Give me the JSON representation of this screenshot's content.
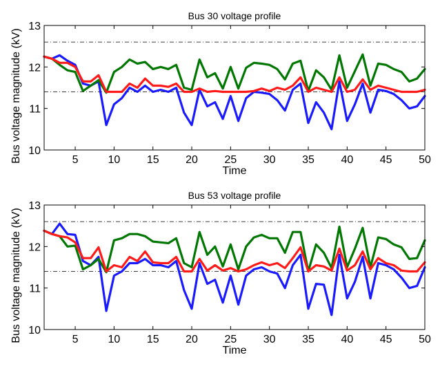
{
  "chart_data": [
    {
      "type": "line",
      "title": "Bus 30 voltage profile",
      "xlabel": "Time",
      "ylabel": "Bus voltage magnitude (kV)",
      "xlim": [
        1,
        50
      ],
      "ylim": [
        10,
        13
      ],
      "xticks": [
        5,
        10,
        15,
        20,
        25,
        30,
        35,
        40,
        45,
        50
      ],
      "yticks": [
        10,
        11,
        12,
        13
      ],
      "grid": false,
      "reference_lines": [
        {
          "y": 12.6,
          "style": "dash-dot",
          "color": "#000000"
        },
        {
          "y": 11.4,
          "style": "dash-dot",
          "color": "#000000"
        }
      ],
      "x": [
        1,
        2,
        3,
        4,
        5,
        6,
        7,
        8,
        9,
        10,
        11,
        12,
        13,
        14,
        15,
        16,
        17,
        18,
        19,
        20,
        21,
        22,
        23,
        24,
        25,
        26,
        27,
        28,
        29,
        30,
        31,
        32,
        33,
        34,
        35,
        36,
        37,
        38,
        39,
        40,
        41,
        42,
        43,
        44,
        45,
        46,
        47,
        48,
        49,
        50
      ],
      "series": [
        {
          "color": "#1a1aff",
          "values": [
            12.25,
            12.2,
            12.28,
            12.15,
            12.05,
            11.6,
            11.55,
            11.65,
            10.6,
            11.1,
            11.25,
            11.5,
            11.4,
            11.55,
            11.4,
            11.45,
            11.4,
            11.5,
            10.9,
            10.6,
            11.45,
            11.05,
            11.15,
            10.75,
            11.3,
            10.7,
            11.25,
            11.4,
            11.38,
            11.35,
            11.2,
            10.95,
            11.45,
            11.6,
            10.65,
            11.15,
            10.9,
            10.5,
            11.65,
            10.7,
            11.1,
            11.6,
            10.9,
            11.45,
            11.42,
            11.35,
            11.2,
            11.0,
            11.05,
            11.3
          ]
        },
        {
          "color": "#007700",
          "values": [
            12.25,
            12.2,
            12.05,
            11.92,
            11.88,
            11.42,
            11.55,
            11.68,
            11.38,
            11.88,
            12.0,
            12.18,
            12.08,
            12.12,
            11.95,
            12.0,
            11.95,
            12.05,
            11.5,
            11.45,
            12.18,
            11.75,
            11.85,
            11.48,
            12.0,
            11.48,
            11.98,
            12.1,
            12.08,
            12.05,
            11.95,
            11.7,
            12.08,
            12.15,
            11.42,
            11.92,
            11.75,
            11.45,
            12.28,
            11.5,
            11.9,
            12.3,
            11.55,
            12.08,
            12.05,
            11.95,
            11.88,
            11.65,
            11.72,
            11.95
          ]
        },
        {
          "color": "#ff1a1a",
          "values": [
            12.25,
            12.2,
            12.1,
            12.1,
            12.0,
            11.65,
            11.65,
            11.8,
            11.4,
            11.4,
            11.4,
            11.6,
            11.5,
            11.72,
            11.55,
            11.55,
            11.52,
            11.6,
            11.4,
            11.4,
            11.48,
            11.4,
            11.42,
            11.4,
            11.4,
            11.4,
            11.4,
            11.42,
            11.48,
            11.42,
            11.5,
            11.45,
            11.55,
            11.75,
            11.4,
            11.5,
            11.45,
            11.4,
            11.75,
            11.4,
            11.45,
            11.7,
            11.45,
            11.55,
            11.5,
            11.45,
            11.4,
            11.4,
            11.4,
            11.45
          ]
        }
      ]
    },
    {
      "type": "line",
      "title": "Bus 53 voltage profile",
      "xlabel": "Time",
      "ylabel": "Bus voltage magnitude (kV)",
      "xlim": [
        1,
        50
      ],
      "ylim": [
        10,
        13
      ],
      "xticks": [
        5,
        10,
        15,
        20,
        25,
        30,
        35,
        40,
        45,
        50
      ],
      "yticks": [
        10,
        11,
        12,
        13
      ],
      "grid": false,
      "reference_lines": [
        {
          "y": 12.6,
          "style": "dash-dot",
          "color": "#000000"
        },
        {
          "y": 11.4,
          "style": "dash-dot",
          "color": "#000000"
        }
      ],
      "x": [
        1,
        2,
        3,
        4,
        5,
        6,
        7,
        8,
        9,
        10,
        11,
        12,
        13,
        14,
        15,
        16,
        17,
        18,
        19,
        20,
        21,
        22,
        23,
        24,
        25,
        26,
        27,
        28,
        29,
        30,
        31,
        32,
        33,
        34,
        35,
        36,
        37,
        38,
        39,
        40,
        41,
        42,
        43,
        44,
        45,
        46,
        47,
        48,
        49,
        50
      ],
      "series": [
        {
          "color": "#1a1aff",
          "values": [
            12.38,
            12.3,
            12.55,
            12.3,
            12.28,
            11.65,
            11.55,
            11.75,
            10.45,
            11.3,
            11.4,
            11.6,
            11.6,
            11.7,
            11.55,
            11.55,
            11.5,
            11.65,
            10.95,
            10.5,
            11.6,
            11.1,
            11.2,
            10.65,
            11.3,
            10.6,
            11.3,
            11.45,
            11.5,
            11.4,
            11.35,
            11.0,
            11.55,
            11.8,
            10.5,
            11.1,
            11.08,
            10.35,
            11.8,
            10.75,
            11.15,
            11.75,
            10.75,
            11.6,
            11.55,
            11.45,
            11.25,
            11.0,
            11.05,
            11.5
          ]
        },
        {
          "color": "#007700",
          "values": [
            12.38,
            12.3,
            12.25,
            12.0,
            12.02,
            11.45,
            11.55,
            11.7,
            11.38,
            12.15,
            12.2,
            12.3,
            12.3,
            12.25,
            12.12,
            12.1,
            12.08,
            12.2,
            11.6,
            11.5,
            12.35,
            11.8,
            12.0,
            11.52,
            12.05,
            11.45,
            12.0,
            12.22,
            12.28,
            12.2,
            12.2,
            11.85,
            12.35,
            12.35,
            11.4,
            12.05,
            11.85,
            11.48,
            12.48,
            11.5,
            11.95,
            12.45,
            11.5,
            12.22,
            12.18,
            12.05,
            11.98,
            11.7,
            11.72,
            12.15
          ]
        },
        {
          "color": "#ff1a1a",
          "values": [
            12.38,
            12.3,
            12.25,
            12.22,
            12.1,
            11.72,
            11.72,
            11.98,
            11.4,
            11.55,
            11.5,
            11.75,
            11.65,
            11.88,
            11.62,
            11.6,
            11.6,
            11.75,
            11.4,
            11.4,
            11.7,
            11.42,
            11.55,
            11.42,
            11.48,
            11.4,
            11.45,
            11.55,
            11.62,
            11.55,
            11.6,
            11.48,
            11.72,
            11.98,
            11.4,
            11.55,
            11.52,
            11.42,
            11.95,
            11.42,
            11.55,
            11.88,
            11.45,
            11.72,
            11.6,
            11.55,
            11.42,
            11.4,
            11.4,
            11.62
          ]
        }
      ]
    }
  ]
}
